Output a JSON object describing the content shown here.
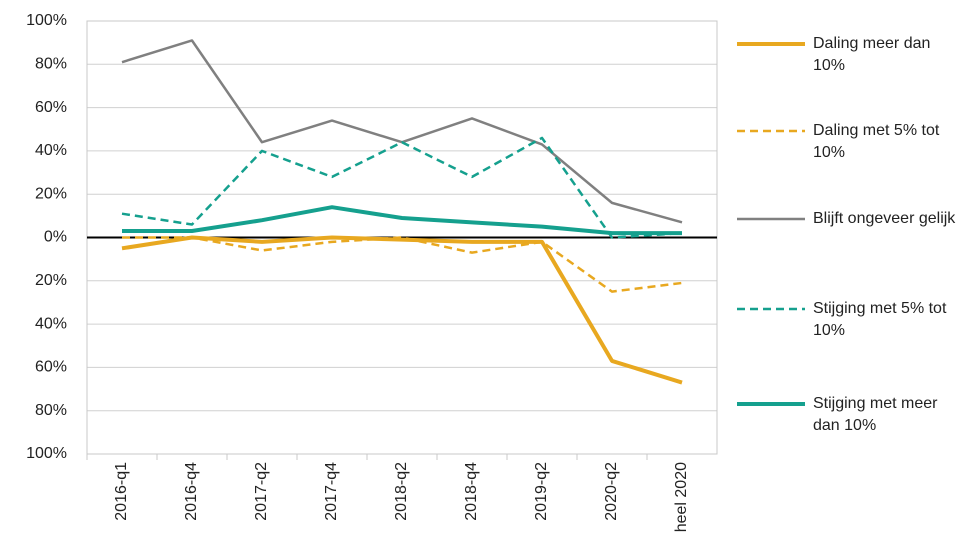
{
  "chart_data": {
    "type": "line",
    "categories": [
      "2016-q1",
      "2016-q4",
      "2017-q2",
      "2017-q4",
      "2018-q2",
      "2018-q4",
      "2019-q2",
      "2020-q2",
      "heel 2020"
    ],
    "series": [
      {
        "name": "Daling meer dan 10%",
        "color": "#e8a820",
        "line_style": "solid",
        "weight": "thick",
        "values": [
          -5,
          0,
          -2,
          0,
          -1,
          -2,
          -2,
          -57,
          -67
        ]
      },
      {
        "name": "Daling met 5% tot 10%",
        "color": "#e8a820",
        "line_style": "dashed",
        "weight": "thin",
        "values": [
          0,
          0,
          -6,
          -2,
          0,
          -7,
          -2,
          -25,
          -21
        ]
      },
      {
        "name": "Blijft ongeveer gelijk",
        "color": "#808080",
        "line_style": "solid",
        "weight": "thin",
        "values": [
          81,
          91,
          44,
          54,
          44,
          55,
          43,
          16,
          7
        ]
      },
      {
        "name": "Stijging met 5% tot 10%",
        "color": "#15a08e",
        "line_style": "dashed",
        "weight": "thin",
        "values": [
          11,
          6,
          40,
          28,
          44,
          28,
          46,
          0,
          2
        ]
      },
      {
        "name": "Stijging met meer dan 10%",
        "color": "#15a08e",
        "line_style": "solid",
        "weight": "thick",
        "values": [
          3,
          3,
          8,
          14,
          9,
          7,
          5,
          2,
          2
        ]
      }
    ],
    "ylim": [
      -100,
      100
    ],
    "yticks": [
      {
        "value": -100,
        "label": "100%"
      },
      {
        "value": -80,
        "label": "80%"
      },
      {
        "value": -60,
        "label": "60%"
      },
      {
        "value": -40,
        "label": "40%"
      },
      {
        "value": -20,
        "label": "20%"
      },
      {
        "value": 0,
        "label": "0%"
      },
      {
        "value": 20,
        "label": "20%"
      },
      {
        "value": 40,
        "label": "40%"
      },
      {
        "value": 60,
        "label": "60%"
      },
      {
        "value": 80,
        "label": "80%"
      },
      {
        "value": 100,
        "label": "100%"
      }
    ],
    "grid": true,
    "legend": "right"
  }
}
